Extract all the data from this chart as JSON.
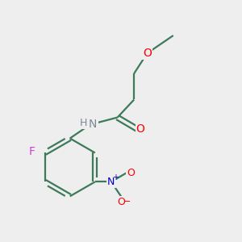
{
  "background_color": "#eeeeee",
  "bond_color": "#3d7a5a",
  "atom_colors": {
    "O": "#ff0000",
    "N_amide": "#7a8a9a",
    "H": "#7a8a9a",
    "N_nitro": "#0000cc",
    "F": "#cc44cc",
    "O_minus": "#ff0000"
  },
  "figsize": [
    3.0,
    3.0
  ],
  "dpi": 100
}
